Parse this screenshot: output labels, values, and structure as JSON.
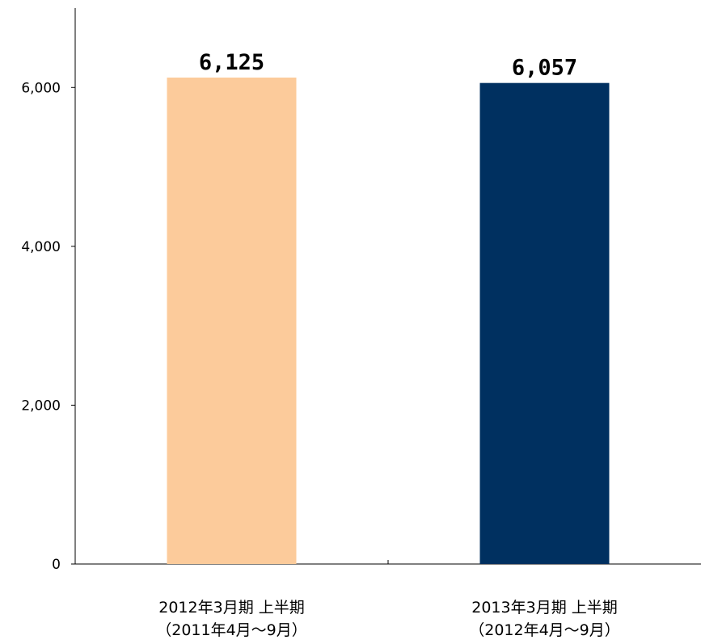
{
  "chart_data": {
    "type": "bar",
    "categories": [
      [
        "2012年3月期 上半期",
        "（2011年4月～9月）"
      ],
      [
        "2013年3月期 上半期",
        "（2012年4月～9月）"
      ]
    ],
    "values": [
      6125,
      6057
    ],
    "value_labels": [
      "6,125",
      "6,057"
    ],
    "colors": [
      "#FCCB9B",
      "#003060"
    ],
    "ylim": [
      0,
      7000
    ],
    "yticks": [
      0,
      2000,
      4000,
      6000
    ],
    "ytick_labels": [
      "0",
      "2,000",
      "4,000",
      "6,000"
    ],
    "grid": false,
    "legend": "none"
  }
}
